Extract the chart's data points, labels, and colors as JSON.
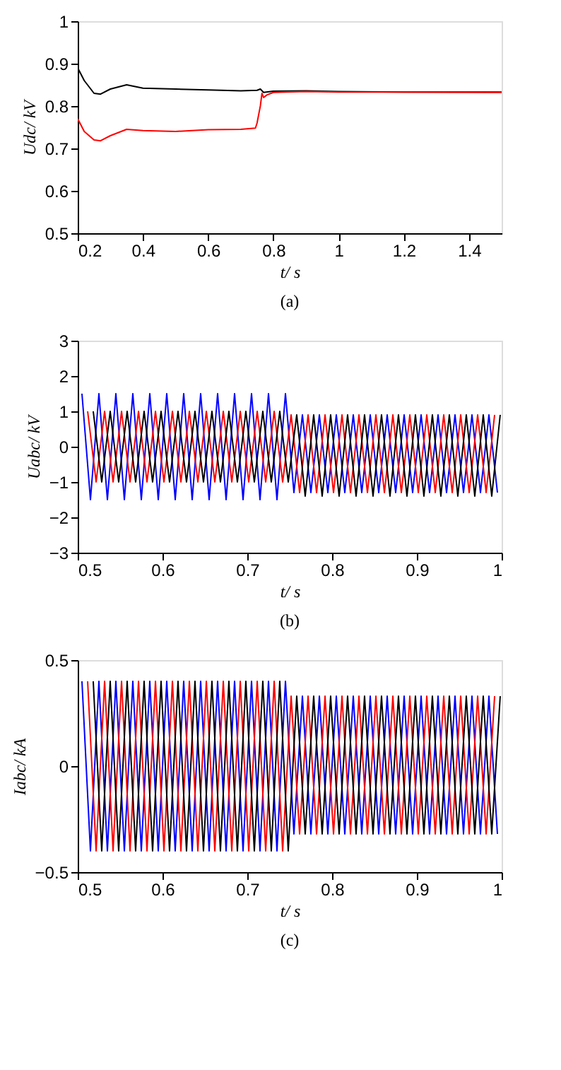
{
  "chart_data": [
    {
      "type": "line",
      "xlabel": "t/ s",
      "ylabel": "Udc/ kV",
      "annotations": [
        "(a)"
      ],
      "xlim": [
        0.2,
        1.5
      ],
      "xticks": [
        0.2,
        0.4,
        0.6,
        0.8,
        1,
        1.2,
        1.4
      ],
      "ylim": [
        0.5,
        1
      ],
      "yticks": [
        0.5,
        0.6,
        0.7,
        0.8,
        0.9,
        1
      ],
      "grid": false,
      "series": [
        {
          "color": "#000000",
          "x": [
            0.2,
            0.22,
            0.25,
            0.27,
            0.3,
            0.35,
            0.4,
            0.5,
            0.6,
            0.7,
            0.75,
            0.76,
            0.77,
            0.8,
            0.9,
            1.0,
            1.2,
            1.5
          ],
          "values": [
            0.89,
            0.86,
            0.83,
            0.828,
            0.84,
            0.85,
            0.842,
            0.84,
            0.838,
            0.836,
            0.837,
            0.84,
            0.832,
            0.835,
            0.836,
            0.834,
            0.833,
            0.833
          ]
        },
        {
          "color": "#ff0000",
          "x": [
            0.2,
            0.22,
            0.25,
            0.27,
            0.3,
            0.35,
            0.4,
            0.5,
            0.6,
            0.7,
            0.745,
            0.75,
            0.76,
            0.765,
            0.77,
            0.78,
            0.8,
            0.9,
            1.0,
            1.2,
            1.5
          ],
          "values": [
            0.77,
            0.74,
            0.72,
            0.718,
            0.73,
            0.745,
            0.742,
            0.74,
            0.744,
            0.745,
            0.748,
            0.76,
            0.8,
            0.83,
            0.82,
            0.826,
            0.832,
            0.834,
            0.833,
            0.833,
            0.832
          ]
        }
      ]
    },
    {
      "type": "line",
      "xlabel": "t/ s",
      "ylabel": "Uabc/ kV",
      "annotations": [
        "(b)"
      ],
      "xlim": [
        0.5,
        1
      ],
      "xticks": [
        0.5,
        0.6,
        0.7,
        0.8,
        0.9,
        1
      ],
      "ylim": [
        -3,
        3
      ],
      "yticks": [
        -3,
        -2,
        -1,
        0,
        1,
        2,
        3
      ],
      "grid": false,
      "series": [
        {
          "color": "#0000ff",
          "x": [
            0.505,
            0.515,
            0.525,
            0.535,
            0.545,
            0.555,
            0.565,
            0.575,
            0.585,
            0.595,
            0.605,
            0.615,
            0.625,
            0.635,
            0.645,
            0.655,
            0.665,
            0.675,
            0.685,
            0.695,
            0.705,
            0.715,
            0.725,
            0.735,
            0.745,
            0.755,
            0.765,
            0.775,
            0.785,
            0.795,
            0.805,
            0.815,
            0.825,
            0.835,
            0.845,
            0.855,
            0.865,
            0.875,
            0.885,
            0.895,
            0.905,
            0.915,
            0.925,
            0.935,
            0.945,
            0.955,
            0.965,
            0.975,
            0.985,
            0.995
          ],
          "values": [
            1.5,
            -1.5,
            1.5,
            -1.5,
            1.5,
            -1.5,
            1.5,
            -1.5,
            1.5,
            -1.5,
            1.5,
            -1.5,
            1.5,
            -1.5,
            1.5,
            -1.5,
            1.5,
            -1.5,
            1.5,
            -1.5,
            1.5,
            -1.5,
            1.5,
            -1.5,
            1.5,
            -1.3,
            0.9,
            -1.3,
            0.9,
            -1.3,
            0.9,
            -1.3,
            0.9,
            -1.3,
            0.9,
            -1.3,
            0.9,
            -1.3,
            0.9,
            -1.3,
            0.9,
            -1.3,
            0.9,
            -1.3,
            0.9,
            -1.3,
            0.9,
            -1.3,
            0.9,
            -1.3
          ]
        },
        {
          "color": "#ff0000",
          "x": [
            0.5117,
            0.5217,
            0.5317,
            0.5417,
            0.5517,
            0.5617,
            0.5717,
            0.5817,
            0.5917,
            0.6017,
            0.6117,
            0.6217,
            0.6317,
            0.6417,
            0.6517,
            0.6617,
            0.6717,
            0.6817,
            0.6917,
            0.7017,
            0.7117,
            0.7217,
            0.7317,
            0.7417,
            0.7517,
            0.7617,
            0.7717,
            0.7817,
            0.7917,
            0.8017,
            0.8117,
            0.8217,
            0.8317,
            0.8417,
            0.8517,
            0.8617,
            0.8717,
            0.8817,
            0.8917,
            0.9017,
            0.9117,
            0.9217,
            0.9317,
            0.9417,
            0.9517,
            0.9617,
            0.9717,
            0.9817,
            0.9917
          ],
          "values": [
            1,
            -1,
            1,
            -1,
            1,
            -1,
            1,
            -1,
            1,
            -1,
            1,
            -1,
            1,
            -1,
            1,
            -1,
            1,
            -1,
            1,
            -1,
            1,
            -1,
            1,
            -1,
            0.9,
            -1.3,
            0.9,
            -1.3,
            0.9,
            -1.3,
            0.9,
            -1.3,
            0.9,
            -1.3,
            0.9,
            -1.3,
            0.9,
            -1.3,
            0.9,
            -1.3,
            0.9,
            -1.3,
            0.9,
            -1.3,
            0.9,
            -1.3,
            0.9,
            -1.3,
            0.9
          ]
        },
        {
          "color": "#000000",
          "x": [
            0.5183,
            0.5283,
            0.5383,
            0.5483,
            0.5583,
            0.5683,
            0.5783,
            0.5883,
            0.5983,
            0.6083,
            0.6183,
            0.6283,
            0.6383,
            0.6483,
            0.6583,
            0.6683,
            0.6783,
            0.6883,
            0.6983,
            0.7083,
            0.7183,
            0.7283,
            0.7383,
            0.7483,
            0.7583,
            0.7683,
            0.7783,
            0.7883,
            0.7983,
            0.8083,
            0.8183,
            0.8283,
            0.8383,
            0.8483,
            0.8583,
            0.8683,
            0.8783,
            0.8883,
            0.8983,
            0.9083,
            0.9183,
            0.9283,
            0.9383,
            0.9483,
            0.9583,
            0.9683,
            0.9783,
            0.9883,
            0.9983
          ],
          "values": [
            1,
            -1,
            1,
            -1,
            1,
            -1,
            1,
            -1,
            1,
            -1,
            1,
            -1,
            1,
            -1,
            1,
            -1,
            1,
            -1,
            1,
            -1,
            1,
            -1,
            1,
            -1,
            0.9,
            -1.4,
            0.9,
            -1.4,
            0.9,
            -1.4,
            0.9,
            -1.4,
            0.9,
            -1.4,
            0.9,
            -1.4,
            0.9,
            -1.4,
            0.9,
            -1.4,
            0.9,
            -1.4,
            0.9,
            -1.4,
            0.9,
            -1.4,
            0.9,
            -1.4,
            0.9
          ]
        }
      ]
    },
    {
      "type": "line",
      "xlabel": "t/ s",
      "ylabel": "Iabc/ kA",
      "annotations": [
        "(c)"
      ],
      "xlim": [
        0.5,
        1
      ],
      "xticks": [
        0.5,
        0.6,
        0.7,
        0.8,
        0.9,
        1
      ],
      "ylim": [
        -0.5,
        0.5
      ],
      "yticks": [
        -0.5,
        0,
        0.5
      ],
      "grid": false,
      "series": [
        {
          "color": "#0000ff",
          "x": [
            0.505,
            0.515,
            0.525,
            0.535,
            0.545,
            0.555,
            0.565,
            0.575,
            0.585,
            0.595,
            0.605,
            0.615,
            0.625,
            0.635,
            0.645,
            0.655,
            0.665,
            0.675,
            0.685,
            0.695,
            0.705,
            0.715,
            0.725,
            0.735,
            0.745,
            0.755,
            0.765,
            0.775,
            0.785,
            0.795,
            0.805,
            0.815,
            0.825,
            0.835,
            0.845,
            0.855,
            0.865,
            0.875,
            0.885,
            0.895,
            0.905,
            0.915,
            0.925,
            0.935,
            0.945,
            0.955,
            0.965,
            0.975,
            0.985,
            0.995
          ],
          "values": [
            0.4,
            -0.4,
            0.4,
            -0.4,
            0.4,
            -0.4,
            0.4,
            -0.4,
            0.4,
            -0.4,
            0.4,
            -0.4,
            0.4,
            -0.4,
            0.4,
            -0.4,
            0.4,
            -0.4,
            0.4,
            -0.4,
            0.4,
            -0.4,
            0.4,
            -0.4,
            0.4,
            -0.32,
            0.33,
            -0.32,
            0.33,
            -0.32,
            0.33,
            -0.32,
            0.33,
            -0.32,
            0.33,
            -0.32,
            0.33,
            -0.32,
            0.33,
            -0.32,
            0.33,
            -0.32,
            0.33,
            -0.32,
            0.33,
            -0.32,
            0.33,
            -0.32,
            0.33,
            -0.32
          ]
        },
        {
          "color": "#ff0000",
          "x": [
            0.5117,
            0.5217,
            0.5317,
            0.5417,
            0.5517,
            0.5617,
            0.5717,
            0.5817,
            0.5917,
            0.6017,
            0.6117,
            0.6217,
            0.6317,
            0.6417,
            0.6517,
            0.6617,
            0.6717,
            0.6817,
            0.6917,
            0.7017,
            0.7117,
            0.7217,
            0.7317,
            0.7417,
            0.7517,
            0.7617,
            0.7717,
            0.7817,
            0.7917,
            0.8017,
            0.8117,
            0.8217,
            0.8317,
            0.8417,
            0.8517,
            0.8617,
            0.8717,
            0.8817,
            0.8917,
            0.9017,
            0.9117,
            0.9217,
            0.9317,
            0.9417,
            0.9517,
            0.9617,
            0.9717,
            0.9817,
            0.9917
          ],
          "values": [
            0.4,
            -0.4,
            0.4,
            -0.4,
            0.4,
            -0.4,
            0.4,
            -0.4,
            0.4,
            -0.4,
            0.4,
            -0.4,
            0.4,
            -0.4,
            0.4,
            -0.4,
            0.4,
            -0.4,
            0.4,
            -0.4,
            0.4,
            -0.4,
            0.4,
            -0.4,
            0.33,
            -0.32,
            0.33,
            -0.32,
            0.33,
            -0.32,
            0.33,
            -0.32,
            0.33,
            -0.32,
            0.33,
            -0.32,
            0.33,
            -0.32,
            0.33,
            -0.32,
            0.33,
            -0.32,
            0.33,
            -0.32,
            0.33,
            -0.32,
            0.33,
            -0.32,
            0.33
          ]
        },
        {
          "color": "#000000",
          "x": [
            0.5183,
            0.5283,
            0.5383,
            0.5483,
            0.5583,
            0.5683,
            0.5783,
            0.5883,
            0.5983,
            0.6083,
            0.6183,
            0.6283,
            0.6383,
            0.6483,
            0.6583,
            0.6683,
            0.6783,
            0.6883,
            0.6983,
            0.7083,
            0.7183,
            0.7283,
            0.7383,
            0.7483,
            0.7583,
            0.7683,
            0.7783,
            0.7883,
            0.7983,
            0.8083,
            0.8183,
            0.8283,
            0.8383,
            0.8483,
            0.8583,
            0.8683,
            0.8783,
            0.8883,
            0.8983,
            0.9083,
            0.9183,
            0.9283,
            0.9383,
            0.9483,
            0.9583,
            0.9683,
            0.9783,
            0.9883,
            0.9983
          ],
          "values": [
            0.4,
            -0.4,
            0.4,
            -0.4,
            0.4,
            -0.4,
            0.4,
            -0.4,
            0.4,
            -0.4,
            0.4,
            -0.4,
            0.4,
            -0.4,
            0.4,
            -0.4,
            0.4,
            -0.4,
            0.4,
            -0.4,
            0.4,
            -0.4,
            0.4,
            -0.4,
            0.33,
            -0.32,
            0.33,
            -0.32,
            0.33,
            -0.32,
            0.33,
            -0.32,
            0.33,
            -0.32,
            0.33,
            -0.32,
            0.33,
            -0.32,
            0.33,
            -0.32,
            0.33,
            -0.32,
            0.33,
            -0.32,
            0.33,
            -0.32,
            0.33,
            -0.32,
            0.33
          ]
        }
      ]
    }
  ]
}
